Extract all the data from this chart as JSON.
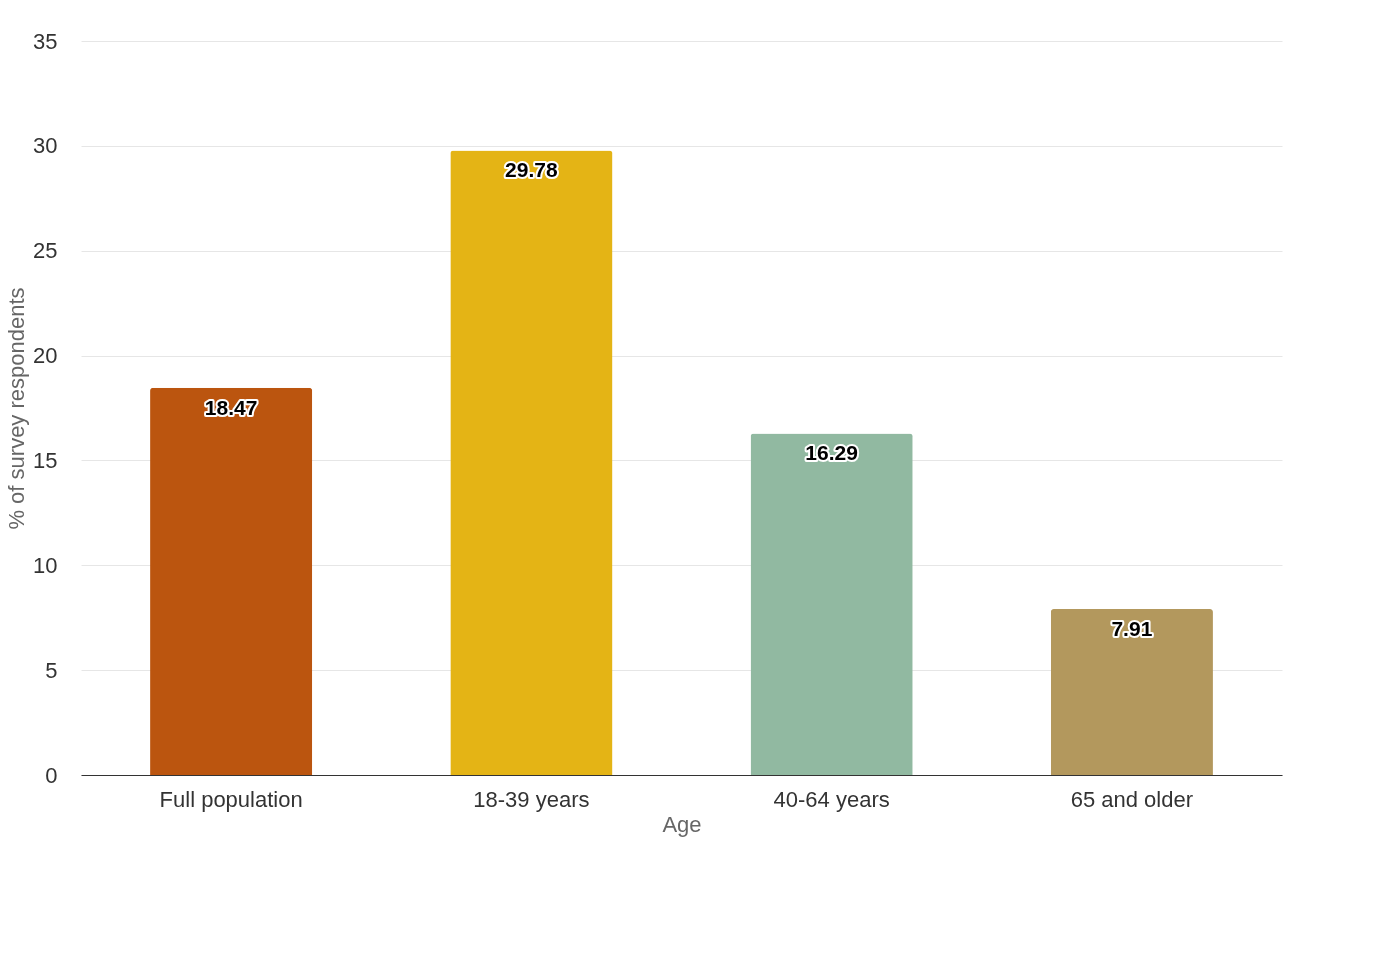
{
  "chart_data": {
    "type": "bar",
    "xlabel": "Age",
    "ylabel": "% of survey respondents",
    "categories": [
      "Full population",
      "18-39 years",
      "40-64 years",
      "65 and older"
    ],
    "values": [
      18.47,
      29.78,
      16.29,
      7.91
    ],
    "colors": [
      "#bb550f",
      "#e4b415",
      "#91b9a1",
      "#b3985d"
    ],
    "ylim": [
      0,
      35
    ],
    "yticks": [
      0,
      5,
      10,
      15,
      20,
      25,
      30,
      35
    ],
    "grid": "y",
    "data_labels": true
  }
}
